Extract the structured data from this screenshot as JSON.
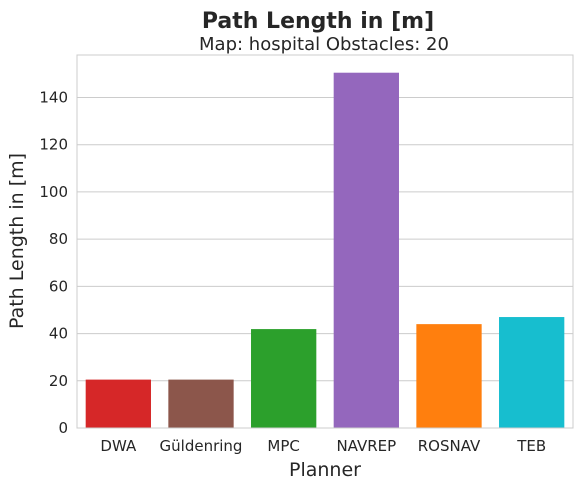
{
  "chart_data": {
    "type": "bar",
    "suptitle": "Path Length in [m]",
    "title": "Map: hospital Obstacles: 20",
    "xlabel": "Planner",
    "ylabel": "Path Length in [m]",
    "categories": [
      "DWA",
      "Güldenring",
      "MPC",
      "NAVREP",
      "ROSNAV",
      "TEB"
    ],
    "values": [
      20.5,
      20.5,
      41.9,
      150.5,
      44.0,
      47.0
    ],
    "colors": [
      "#d62728",
      "#8c564b",
      "#2ca02c",
      "#9467bd",
      "#ff7f0e",
      "#17becf"
    ],
    "ylim": [
      0,
      158
    ],
    "yticks": [
      0,
      20,
      40,
      60,
      80,
      100,
      120,
      140
    ],
    "grid": "horizontal",
    "legend": "none"
  }
}
